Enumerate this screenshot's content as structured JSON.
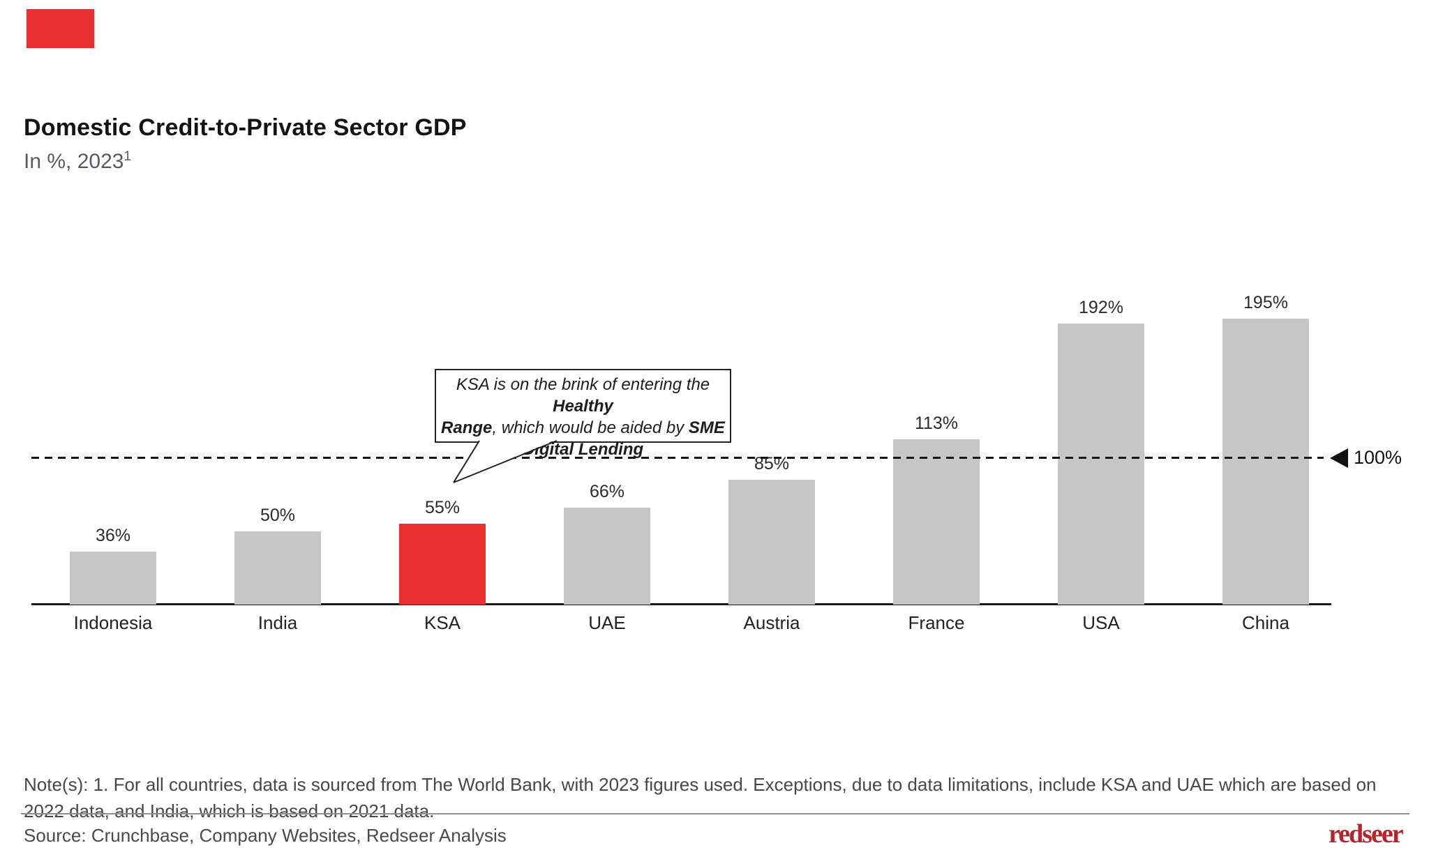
{
  "slide": {
    "title": "Domestic Credit-to-Private Sector GDP",
    "subtitle": "In %, 2023",
    "subtitle_superscript": "1",
    "accent_color": "#e8302e",
    "notes": "Note(s): 1. For all countries, data is sourced from The World Bank, with 2023 figures used. Exceptions, due to data limitations, include KSA and UAE which are based on 2022 data, and India, which is based on 2021 data.",
    "source": "Source: Crunchbase, Company Websites, Redseer Analysis",
    "logo_text": "redseer",
    "logo_color": "#b5242b"
  },
  "chart_data": {
    "type": "bar",
    "title": "Domestic Credit-to-Private Sector GDP",
    "unit": "%",
    "year_label": "2023",
    "categories": [
      "Indonesia",
      "India",
      "KSA",
      "UAE",
      "Austria",
      "France",
      "USA",
      "China"
    ],
    "values": [
      36,
      50,
      55,
      66,
      85,
      113,
      192,
      195
    ],
    "value_labels": [
      "36%",
      "50%",
      "55%",
      "66%",
      "85%",
      "113%",
      "192%",
      "195%"
    ],
    "highlighted_category": "KSA",
    "bar_color": "#c6c6c6",
    "highlight_color": "#e8302e",
    "ylim": [
      0,
      210
    ],
    "grid": false,
    "legend": false,
    "reference_line": {
      "value": 100,
      "label": "100%",
      "style": "dashed",
      "marker": "left-triangle"
    },
    "annotation": {
      "target": "KSA",
      "lines": [
        [
          {
            "t": "KSA is on the brink of entering the ",
            "b": 0
          },
          {
            "t": "Healthy",
            "b": 1
          }
        ],
        [
          {
            "t": "Range",
            "b": 1
          },
          {
            "t": ", which would be aided by ",
            "b": 0
          },
          {
            "t": "SME",
            "b": 1
          }
        ],
        [
          {
            "t": "Digital Lending",
            "b": 1
          }
        ]
      ]
    }
  }
}
